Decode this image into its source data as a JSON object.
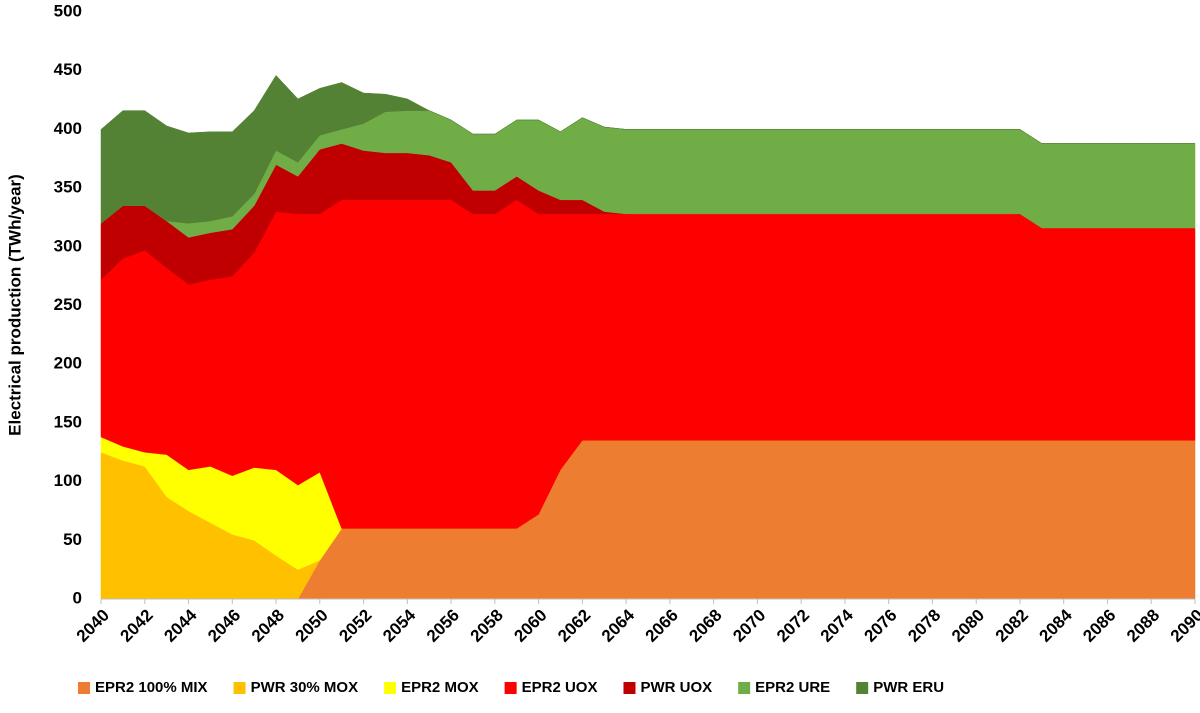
{
  "chart_data": {
    "type": "stacked_area",
    "y_label": "Electrical production (TWh/year)",
    "x": [
      2040,
      2041,
      2042,
      2043,
      2044,
      2045,
      2046,
      2047,
      2048,
      2049,
      2050,
      2051,
      2052,
      2053,
      2054,
      2055,
      2056,
      2057,
      2058,
      2059,
      2060,
      2061,
      2062,
      2063,
      2064,
      2065,
      2066,
      2067,
      2068,
      2069,
      2070,
      2071,
      2072,
      2073,
      2074,
      2075,
      2076,
      2077,
      2078,
      2079,
      2080,
      2081,
      2082,
      2083,
      2084,
      2085,
      2086,
      2087,
      2088,
      2089,
      2090
    ],
    "xlim": [
      2040,
      2090
    ],
    "xticks": [
      2040,
      2042,
      2044,
      2046,
      2048,
      2050,
      2052,
      2054,
      2056,
      2058,
      2060,
      2062,
      2064,
      2066,
      2068,
      2070,
      2072,
      2074,
      2076,
      2078,
      2080,
      2082,
      2084,
      2086,
      2088,
      2090
    ],
    "ylim": [
      0,
      500
    ],
    "yticks": [
      0,
      50,
      100,
      150,
      200,
      250,
      300,
      350,
      400,
      450,
      500
    ],
    "legend": "bottom",
    "series": [
      {
        "name": "EPR2 100% MIX",
        "color": "#ed7d31",
        "values": [
          0,
          0,
          0,
          0,
          0,
          0,
          0,
          0,
          0,
          0,
          33,
          60,
          60,
          60,
          60,
          60,
          60,
          60,
          60,
          60,
          72,
          110,
          135,
          135,
          135,
          135,
          135,
          135,
          135,
          135,
          135,
          135,
          135,
          135,
          135,
          135,
          135,
          135,
          135,
          135,
          135,
          135,
          135,
          135,
          135,
          135,
          135,
          135,
          135,
          135,
          135
        ]
      },
      {
        "name": "PWR 30% MOX",
        "color": "#ffc000",
        "values": [
          125,
          118,
          113,
          87,
          75,
          65,
          55,
          50,
          37,
          25,
          0,
          0,
          0,
          0,
          0,
          0,
          0,
          0,
          0,
          0,
          0,
          0,
          0,
          0,
          0,
          0,
          0,
          0,
          0,
          0,
          0,
          0,
          0,
          0,
          0,
          0,
          0,
          0,
          0,
          0,
          0,
          0,
          0,
          0,
          0,
          0,
          0,
          0,
          0,
          0,
          0
        ]
      },
      {
        "name": "EPR2 MOX",
        "color": "#ffff00",
        "values": [
          13,
          12,
          12,
          36,
          35,
          48,
          50,
          62,
          73,
          72,
          75,
          0,
          0,
          0,
          0,
          0,
          0,
          0,
          0,
          0,
          0,
          0,
          0,
          0,
          0,
          0,
          0,
          0,
          0,
          0,
          0,
          0,
          0,
          0,
          0,
          0,
          0,
          0,
          0,
          0,
          0,
          0,
          0,
          0,
          0,
          0,
          0,
          0,
          0,
          0,
          0
        ]
      },
      {
        "name": "EPR2 UOX",
        "color": "#ff0000",
        "values": [
          134,
          160,
          172,
          159,
          158,
          159,
          170,
          183,
          220,
          231,
          220,
          280,
          280,
          280,
          280,
          280,
          280,
          268,
          268,
          280,
          256,
          218,
          193,
          193,
          193,
          193,
          193,
          193,
          193,
          193,
          193,
          193,
          193,
          193,
          193,
          193,
          193,
          193,
          193,
          193,
          193,
          193,
          193,
          181,
          181,
          181,
          181,
          181,
          181,
          181,
          181
        ]
      },
      {
        "name": "PWR UOX",
        "color": "#c00000",
        "values": [
          48,
          45,
          38,
          40,
          40,
          40,
          40,
          40,
          40,
          32,
          55,
          48,
          42,
          40,
          40,
          38,
          32,
          20,
          20,
          20,
          20,
          12,
          12,
          2,
          0,
          0,
          0,
          0,
          0,
          0,
          0,
          0,
          0,
          0,
          0,
          0,
          0,
          0,
          0,
          0,
          0,
          0,
          0,
          0,
          0,
          0,
          0,
          0,
          0,
          0,
          0
        ]
      },
      {
        "name": "EPR2 URE",
        "color": "#70ad47",
        "values": [
          0,
          0,
          0,
          0,
          12,
          10,
          11,
          10,
          12,
          12,
          12,
          12,
          23,
          35,
          36,
          38,
          36,
          48,
          48,
          48,
          60,
          58,
          70,
          72,
          72,
          72,
          72,
          72,
          72,
          72,
          72,
          72,
          72,
          72,
          72,
          72,
          72,
          72,
          72,
          72,
          72,
          72,
          72,
          72,
          72,
          72,
          72,
          72,
          72,
          72,
          72
        ]
      },
      {
        "name": "PWR ERU",
        "color": "#548235",
        "values": [
          80,
          81,
          81,
          81,
          77,
          76,
          72,
          71,
          64,
          54,
          40,
          40,
          26,
          15,
          10,
          0,
          0,
          0,
          0,
          0,
          0,
          0,
          0,
          0,
          0,
          0,
          0,
          0,
          0,
          0,
          0,
          0,
          0,
          0,
          0,
          0,
          0,
          0,
          0,
          0,
          0,
          0,
          0,
          0,
          0,
          0,
          0,
          0,
          0,
          0,
          0
        ]
      }
    ]
  }
}
